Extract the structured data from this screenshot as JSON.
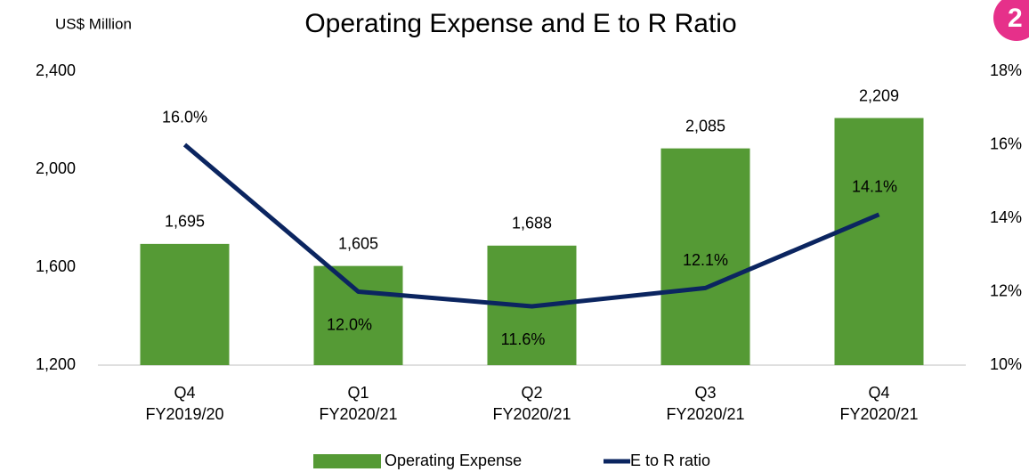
{
  "chart_data": {
    "type": "bar-line",
    "title": "Operating Expense and E to R Ratio",
    "y_label": "US$ Million",
    "page_badge": "2",
    "categories": [
      [
        "Q4",
        "FY2019/20"
      ],
      [
        "Q1",
        "FY2020/21"
      ],
      [
        "Q2",
        "FY2020/21"
      ],
      [
        "Q3",
        "FY2020/21"
      ],
      [
        "Q4",
        "FY2020/21"
      ]
    ],
    "series": [
      {
        "name": "Operating Expense",
        "color": "#559a35",
        "type": "bar",
        "values": [
          1695,
          1605,
          1688,
          2085,
          2209
        ],
        "value_labels": [
          "1,695",
          "1,605",
          "1,688",
          "2,085",
          "2,209"
        ]
      },
      {
        "name": "E to R ratio",
        "color": "#0b2560",
        "type": "line",
        "axis": "y2",
        "values": [
          16.0,
          12.0,
          11.6,
          12.1,
          14.1
        ],
        "value_labels": [
          "16.0%",
          "12.0%",
          "11.6%",
          "12.1%",
          "14.1%"
        ]
      }
    ],
    "ylim": [
      1200,
      2400
    ],
    "yticks": [
      {
        "value": 1200,
        "label": "1,200"
      },
      {
        "value": 1600,
        "label": "1,600"
      },
      {
        "value": 2000,
        "label": "2,000"
      },
      {
        "value": 2400,
        "label": "2,400"
      }
    ],
    "y2lim": [
      10,
      18
    ],
    "y2ticks": [
      {
        "value": 10,
        "label": "10%"
      },
      {
        "value": 12,
        "label": "12%"
      },
      {
        "value": 14,
        "label": "14%"
      },
      {
        "value": 16,
        "label": "16%"
      },
      {
        "value": 18,
        "label": "18%"
      }
    ],
    "legend": "bottom"
  }
}
